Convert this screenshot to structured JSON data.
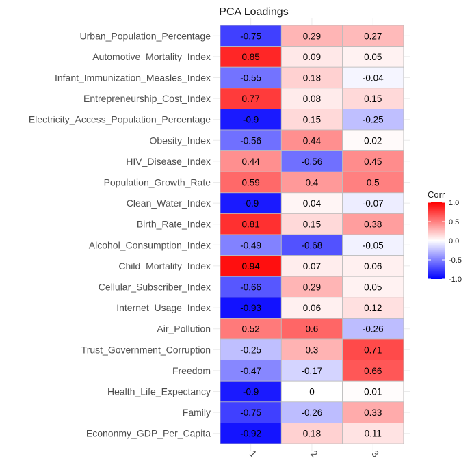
{
  "chart_data": {
    "type": "heatmap",
    "title": "PCA Loadings",
    "x_categories": [
      "1",
      "2",
      "3"
    ],
    "y_categories": [
      "Urban_Population_Percentage",
      "Automotive_Mortality_Index",
      "Infant_Immunization_Measles_Index",
      "Entrepreneurship_Cost_Index",
      "Electricity_Access_Population_Percentage",
      "Obesity_Index",
      "HIV_Disease_Index",
      "Population_Growth_Rate",
      "Clean_Water_Index",
      "Birth_Rate_Index",
      "Alcohol_Consumption_Index",
      "Child_Mortality_Index",
      "Cellular_Subscriber_Index",
      "Internet_Usage_Index",
      "Air_Pollution",
      "Trust_Government_Corruption",
      "Freedom",
      "Health_Life_Expectancy",
      "Family",
      "Econonmy_GDP_Per_Capita"
    ],
    "values": [
      [
        -0.75,
        0.29,
        0.27
      ],
      [
        0.85,
        0.09,
        0.05
      ],
      [
        -0.55,
        0.18,
        -0.04
      ],
      [
        0.77,
        0.08,
        0.15
      ],
      [
        -0.9,
        0.15,
        -0.25
      ],
      [
        -0.56,
        0.44,
        0.02
      ],
      [
        0.44,
        -0.56,
        0.45
      ],
      [
        0.59,
        0.4,
        0.5
      ],
      [
        -0.9,
        0.04,
        -0.07
      ],
      [
        0.81,
        0.15,
        0.38
      ],
      [
        -0.49,
        -0.68,
        -0.05
      ],
      [
        0.94,
        0.07,
        0.06
      ],
      [
        -0.66,
        0.29,
        0.05
      ],
      [
        -0.93,
        0.06,
        0.12
      ],
      [
        0.52,
        0.6,
        -0.26
      ],
      [
        -0.25,
        0.3,
        0.71
      ],
      [
        -0.47,
        -0.17,
        0.66
      ],
      [
        -0.9,
        0,
        0.01
      ],
      [
        -0.75,
        -0.26,
        0.33
      ],
      [
        -0.92,
        0.18,
        0.11
      ]
    ],
    "legend": {
      "title": "Corr",
      "ticks": [
        "1.0",
        "0.5",
        "0.0",
        "-0.5",
        "-1.0"
      ],
      "tick_values": [
        1.0,
        0.5,
        0.0,
        -0.5,
        -1.0
      ],
      "range": [
        -1,
        1
      ],
      "placement": "right"
    },
    "colors": {
      "low": "#0000ff",
      "mid": "#ffffff",
      "high": "#ff0000",
      "cell_border": "#bdbdbd"
    }
  }
}
